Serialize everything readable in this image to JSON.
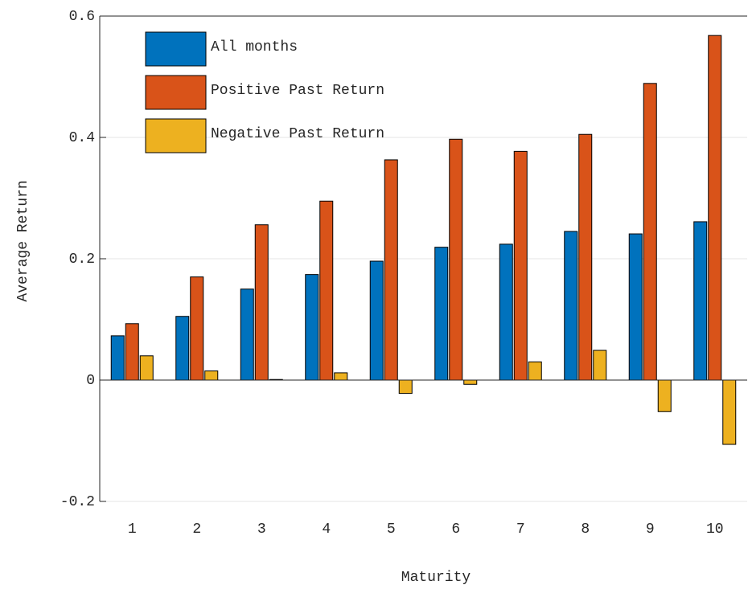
{
  "chart_data": {
    "type": "bar",
    "xlabel": "Maturity",
    "ylabel": "Average Return",
    "categories": [
      "1",
      "2",
      "3",
      "4",
      "5",
      "6",
      "7",
      "8",
      "9",
      "10"
    ],
    "series": [
      {
        "name": "All months",
        "color": "#0072bd",
        "values": [
          0.073,
          0.105,
          0.15,
          0.174,
          0.196,
          0.219,
          0.224,
          0.245,
          0.241,
          0.261
        ]
      },
      {
        "name": "Positive Past Return",
        "color": "#d95319",
        "values": [
          0.093,
          0.17,
          0.256,
          0.295,
          0.363,
          0.397,
          0.377,
          0.405,
          0.489,
          0.568
        ]
      },
      {
        "name": "Negative Past Return",
        "color": "#edb120",
        "values": [
          0.04,
          0.015,
          0.001,
          0.012,
          -0.022,
          -0.007,
          0.03,
          0.049,
          -0.052,
          -0.106
        ]
      }
    ],
    "ylim": [
      -0.2,
      0.6
    ],
    "yticks": [
      -0.2,
      0,
      0.2,
      0.4,
      0.6
    ],
    "grid": true,
    "legend": "upper-left"
  }
}
